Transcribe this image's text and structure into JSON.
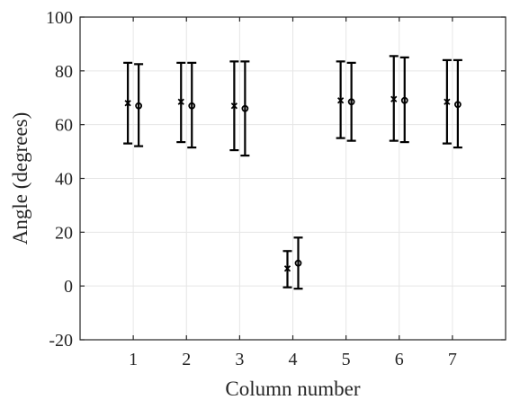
{
  "chart_data": {
    "type": "scatter",
    "title": "",
    "xlabel": "Column number",
    "ylabel": "Angle (degrees)",
    "xlim": [
      0,
      8
    ],
    "ylim": [
      -20,
      100
    ],
    "xticks": [
      "1",
      "2",
      "3",
      "4",
      "5",
      "6",
      "7"
    ],
    "yticks": [
      "-20",
      "0",
      "20",
      "40",
      "60",
      "80",
      "100"
    ],
    "grid": true,
    "legend": "none",
    "colors": {
      "marks": "#000000",
      "axis": "#262626",
      "grid": "#e6e6e6"
    },
    "series": [
      {
        "marker": "x",
        "x": [
          1,
          2,
          3,
          4,
          5,
          6,
          7
        ],
        "y": [
          68,
          68.5,
          67,
          6.5,
          69,
          69.5,
          68.5
        ],
        "lower": [
          53,
          53.5,
          50.5,
          -0.5,
          55,
          54,
          53
        ],
        "upper": [
          83,
          83,
          83.5,
          13,
          83.5,
          85.5,
          84
        ]
      },
      {
        "marker": "o",
        "x": [
          1,
          2,
          3,
          4,
          5,
          6,
          7
        ],
        "y": [
          67,
          67,
          66,
          8.5,
          68.5,
          69,
          67.5
        ],
        "lower": [
          52,
          51.5,
          48.5,
          -1,
          54,
          53.5,
          51.5
        ],
        "upper": [
          82.5,
          83,
          83.5,
          18,
          83,
          85,
          84
        ]
      }
    ]
  }
}
